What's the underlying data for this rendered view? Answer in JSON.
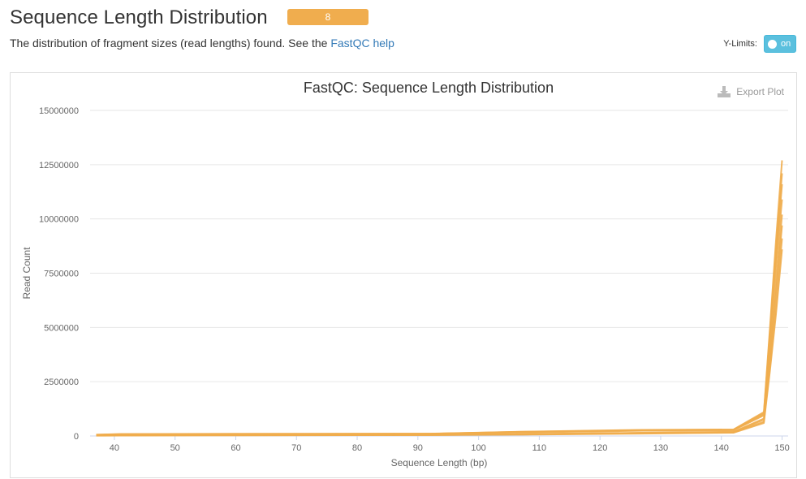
{
  "header": {
    "title": "Sequence Length Distribution",
    "badge": "8"
  },
  "description": {
    "text": "The distribution of fragment sizes (read lengths) found. See the ",
    "link_text": "FastQC help"
  },
  "ylimits": {
    "label": "Y-Limits:",
    "toggle_text": "on"
  },
  "export": {
    "label": "Export Plot",
    "icon": "download-icon"
  },
  "colors": {
    "accent": "#f0ad4e",
    "link": "#337ab7",
    "toggle": "#5bc0de"
  },
  "chart_data": {
    "type": "line",
    "title": "FastQC: Sequence Length Distribution",
    "xlabel": "Sequence Length (bp)",
    "ylabel": "Read Count",
    "xlim": [
      36,
      151
    ],
    "ylim": [
      0,
      15000000
    ],
    "xticks": [
      40,
      50,
      60,
      70,
      80,
      90,
      100,
      110,
      120,
      130,
      140,
      150
    ],
    "yticks": [
      0,
      2500000,
      5000000,
      7500000,
      10000000,
      12500000,
      15000000
    ],
    "ytick_labels": [
      "0",
      "2500000",
      "5000000",
      "7500000",
      "10000000",
      "12500000",
      "15000000"
    ],
    "grid": true,
    "series": [
      {
        "values": [
          [
            37,
            60000
          ],
          [
            41,
            90000
          ],
          [
            60,
            100000
          ],
          [
            92,
            110000
          ],
          [
            107,
            200000
          ],
          [
            127,
            280000
          ],
          [
            142,
            300000
          ],
          [
            147,
            1100000
          ],
          [
            148,
            5000000
          ],
          [
            149,
            9000000
          ],
          [
            150,
            12700000
          ]
        ]
      },
      {
        "values": [
          [
            37,
            50000
          ],
          [
            41,
            80000
          ],
          [
            60,
            90000
          ],
          [
            92,
            100000
          ],
          [
            107,
            180000
          ],
          [
            127,
            260000
          ],
          [
            142,
            280000
          ],
          [
            147,
            1000000
          ],
          [
            148,
            4600000
          ],
          [
            149,
            8200000
          ],
          [
            150,
            11600000
          ]
        ]
      },
      {
        "values": [
          [
            37,
            20000
          ],
          [
            41,
            30000
          ],
          [
            60,
            40000
          ],
          [
            92,
            50000
          ],
          [
            107,
            80000
          ],
          [
            127,
            140000
          ],
          [
            142,
            180000
          ],
          [
            147,
            750000
          ],
          [
            148,
            3600000
          ],
          [
            149,
            6600000
          ],
          [
            150,
            9700000
          ]
        ]
      },
      {
        "values": [
          [
            37,
            20000
          ],
          [
            41,
            25000
          ],
          [
            60,
            35000
          ],
          [
            92,
            45000
          ],
          [
            107,
            70000
          ],
          [
            127,
            120000
          ],
          [
            142,
            160000
          ],
          [
            147,
            650000
          ],
          [
            148,
            3200000
          ],
          [
            149,
            6000000
          ],
          [
            150,
            9100000
          ]
        ]
      },
      {
        "values": [
          [
            37,
            55000
          ],
          [
            41,
            85000
          ],
          [
            60,
            95000
          ],
          [
            92,
            105000
          ],
          [
            107,
            190000
          ],
          [
            127,
            270000
          ],
          [
            142,
            290000
          ],
          [
            147,
            1050000
          ],
          [
            148,
            4800000
          ],
          [
            149,
            8600000
          ],
          [
            150,
            12100000
          ]
        ]
      },
      {
        "values": [
          [
            37,
            15000
          ],
          [
            41,
            20000
          ],
          [
            60,
            30000
          ],
          [
            92,
            40000
          ],
          [
            107,
            60000
          ],
          [
            127,
            110000
          ],
          [
            142,
            150000
          ],
          [
            147,
            600000
          ],
          [
            148,
            3000000
          ],
          [
            149,
            5600000
          ],
          [
            150,
            8600000
          ]
        ]
      },
      {
        "values": [
          [
            37,
            45000
          ],
          [
            41,
            70000
          ],
          [
            60,
            80000
          ],
          [
            92,
            90000
          ],
          [
            107,
            160000
          ],
          [
            127,
            240000
          ],
          [
            142,
            260000
          ],
          [
            147,
            950000
          ],
          [
            148,
            4300000
          ],
          [
            149,
            7800000
          ],
          [
            150,
            10900000
          ]
        ]
      },
      {
        "values": [
          [
            37,
            25000
          ],
          [
            41,
            35000
          ],
          [
            60,
            45000
          ],
          [
            92,
            55000
          ],
          [
            107,
            90000
          ],
          [
            127,
            150000
          ],
          [
            142,
            190000
          ],
          [
            147,
            800000
          ],
          [
            148,
            3800000
          ],
          [
            149,
            7000000
          ],
          [
            150,
            10200000
          ]
        ]
      }
    ]
  }
}
